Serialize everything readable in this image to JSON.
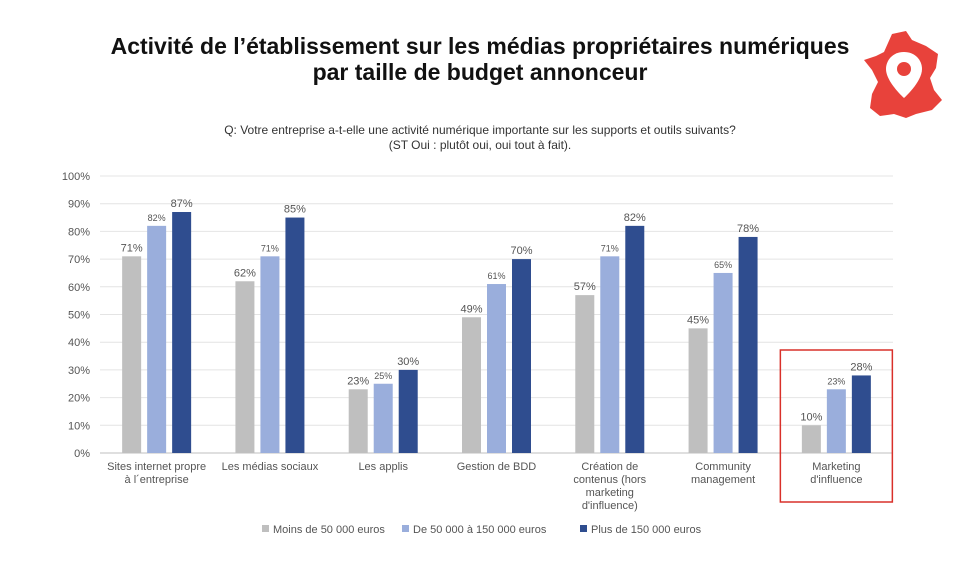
{
  "title_line1": "Activité de l’établissement sur les médias propriétaires numériques",
  "title_line2": "par taille de budget annonceur",
  "question_line1": "Q: Votre entreprise a-t-elle une activité numérique importante sur les supports et outils suivants?",
  "question_line2": "(ST Oui : plutôt oui, oui tout à fait).",
  "icons": {
    "map": "france-map-location-icon"
  },
  "chart_data": {
    "type": "bar",
    "categories": [
      [
        "Sites internet propre",
        "à l´entreprise"
      ],
      [
        "Les médias sociaux"
      ],
      [
        "Les applis"
      ],
      [
        "Gestion de BDD"
      ],
      [
        "Création de",
        "contenus (hors",
        "marketing",
        "d'influence)"
      ],
      [
        "Community",
        "management"
      ],
      [
        "Marketing",
        "d'influence"
      ]
    ],
    "series": [
      {
        "name": "Moins de 50 000 euros",
        "color": "#bfbfbf",
        "values": [
          71,
          62,
          23,
          49,
          57,
          45,
          10
        ],
        "labels": [
          "71%",
          "62%",
          "23%",
          "49%",
          "57%",
          "45%",
          "10%"
        ]
      },
      {
        "name": "De 50 000 à 150 000 euros",
        "color": "#9aaedc",
        "values": [
          82,
          71,
          25,
          61,
          71,
          65,
          23
        ],
        "labels": [
          "82%",
          "71%",
          "25%",
          "61%",
          "71%",
          "65%",
          "23%"
        ]
      },
      {
        "name": "Plus de 150 000 euros",
        "color": "#2f4d8f",
        "values": [
          87,
          85,
          30,
          70,
          82,
          78,
          28
        ],
        "labels": [
          "87%",
          "85%",
          "30%",
          "70%",
          "82%",
          "78%",
          "28%"
        ]
      }
    ],
    "y_ticks": [
      "0%",
      "10%",
      "20%",
      "30%",
      "40%",
      "50%",
      "60%",
      "70%",
      "80%",
      "90%",
      "100%"
    ],
    "ylim": [
      0,
      100
    ],
    "grid": true,
    "legend_position": "bottom",
    "highlight_category": 6,
    "highlight_color": "#d9302a"
  }
}
